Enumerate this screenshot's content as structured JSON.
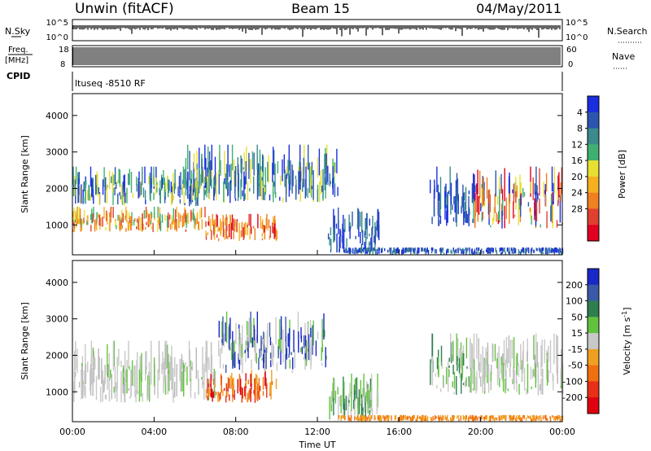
{
  "header": {
    "station": "Unwin (fitACF)",
    "beam": "Beam 15",
    "date": "04/May/2011"
  },
  "strip_labels": {
    "nsky": "N.Sky",
    "nsky_ticks": [
      "10^5",
      "10^0"
    ],
    "nsearch": "N.Search",
    "nsearch_ticks": [
      "10^5",
      "10^0"
    ],
    "freq": "Freq.",
    "freq_unit": "[MHz]",
    "freq_ticks": [
      "18",
      "8"
    ],
    "nave": "Nave",
    "nave_ticks": [
      "60",
      "0"
    ],
    "cpid": "CPID",
    "cpid_text": "ltuseq -8510 RF"
  },
  "chart_data": [
    {
      "type": "heatmap",
      "name": "power-panel",
      "ylabel": "Slant Range [km]",
      "xlabel": "Time UT",
      "xlim": [
        0,
        24
      ],
      "ylim": [
        180,
        4600
      ],
      "yticks": [
        1000,
        2000,
        3000,
        4000
      ],
      "xticks": [
        "00:00",
        "04:00",
        "08:00",
        "12:00",
        "16:00",
        "20:00",
        "00:00"
      ],
      "colorbar": {
        "label": "Power [dB]",
        "ticks": [
          "4",
          "8",
          "12",
          "16",
          "20",
          "24",
          "28"
        ],
        "colors": [
          "#1a2ee0",
          "#2c55b0",
          "#3a8a8e",
          "#40b070",
          "#e8e030",
          "#f5b020",
          "#f08020",
          "#e04030",
          "#e00020"
        ]
      },
      "regions": [
        {
          "t0": 0.0,
          "t1": 6.5,
          "r0": 800,
          "r1": 1500,
          "level": "orange-yellow"
        },
        {
          "t0": 0.0,
          "t1": 7.0,
          "r0": 1500,
          "r1": 2600,
          "level": "green-blue"
        },
        {
          "t0": 6.5,
          "t1": 10.0,
          "r0": 550,
          "r1": 1300,
          "level": "red-orange"
        },
        {
          "t0": 5.5,
          "t1": 13.0,
          "r0": 1600,
          "r1": 3200,
          "level": "blue-green"
        },
        {
          "t0": 12.5,
          "t1": 15.0,
          "r0": 200,
          "r1": 1500,
          "level": "blue"
        },
        {
          "t0": 17.5,
          "t1": 19.5,
          "r0": 900,
          "r1": 2600,
          "level": "blue"
        },
        {
          "t0": 19.5,
          "t1": 24.0,
          "r0": 900,
          "r1": 2600,
          "level": "mixed"
        },
        {
          "t0": 13.0,
          "t1": 24.0,
          "r0": 180,
          "r1": 380,
          "level": "blue"
        }
      ]
    },
    {
      "type": "heatmap",
      "name": "velocity-panel",
      "ylabel": "Slant Range [km]",
      "xlabel": "Time UT",
      "xlim": [
        0,
        24
      ],
      "ylim": [
        180,
        4600
      ],
      "yticks": [
        1000,
        2000,
        3000,
        4000
      ],
      "xticks": [
        "00:00",
        "04:00",
        "08:00",
        "12:00",
        "16:00",
        "20:00",
        "00:00"
      ],
      "colorbar": {
        "label": "Velocity [m s^-1]",
        "ticks": [
          "200",
          "100",
          "50",
          "15",
          "-15",
          "-50",
          "-100",
          "-200"
        ],
        "colors": [
          "#1a28c8",
          "#3a5aa8",
          "#2e7e4e",
          "#62c23e",
          "#c8c8c8",
          "#f0a020",
          "#f07010",
          "#e83018",
          "#e00010"
        ]
      },
      "regions": [
        {
          "t0": 0.0,
          "t1": 7.0,
          "r0": 700,
          "r1": 2400,
          "level": "gray"
        },
        {
          "t0": 6.5,
          "t1": 10.0,
          "r0": 700,
          "r1": 1600,
          "level": "red-orange"
        },
        {
          "t0": 7.0,
          "t1": 12.5,
          "r0": 1500,
          "r1": 3200,
          "level": "gray-blue"
        },
        {
          "t0": 12.5,
          "t1": 15.0,
          "r0": 200,
          "r1": 1500,
          "level": "green"
        },
        {
          "t0": 17.5,
          "t1": 19.5,
          "r0": 900,
          "r1": 2600,
          "level": "green"
        },
        {
          "t0": 19.5,
          "t1": 24.0,
          "r0": 900,
          "r1": 2600,
          "level": "gray"
        },
        {
          "t0": 13.0,
          "t1": 24.0,
          "r0": 180,
          "r1": 360,
          "level": "orange"
        }
      ]
    }
  ],
  "xaxis_title": "Time UT"
}
